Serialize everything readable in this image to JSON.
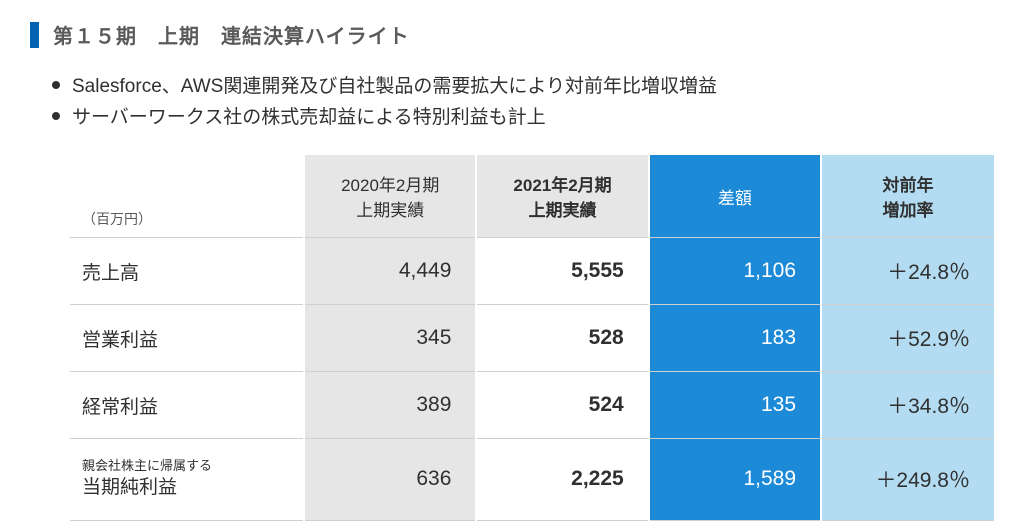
{
  "title": "第１５期　上期　連結決算ハイライト",
  "bullets": [
    "Salesforce、AWS関連開発及び自社製品の需要拡大により対前年比増収増益",
    "サーバーワークス社の株式売却益による特別利益も計上"
  ],
  "table": {
    "unit_label": "（百万円）",
    "headers": [
      {
        "text": "2020年2月期\n上期実績",
        "style": "gray",
        "bold": false
      },
      {
        "text": "2021年2月期\n上期実績",
        "style": "gray",
        "bold": true
      },
      {
        "text": "差額",
        "style": "blue",
        "bold": false
      },
      {
        "text": "対前年\n増加率",
        "style": "lightblue",
        "bold": true
      }
    ],
    "rows": [
      {
        "label": "売上高",
        "prev": "4,449",
        "curr": "5,555",
        "diff": "1,106",
        "rate": "＋24.8％"
      },
      {
        "label": "営業利益",
        "prev": "345",
        "curr": "528",
        "diff": "183",
        "rate": "＋52.9％"
      },
      {
        "label": "経常利益",
        "prev": "389",
        "curr": "524",
        "diff": "135",
        "rate": "＋34.8％"
      },
      {
        "label_small": "親会社株主に帰属する",
        "label": "当期純利益",
        "prev": "636",
        "curr": "2,225",
        "diff": "1,589",
        "rate": "＋249.8％"
      }
    ]
  },
  "colors": {
    "accent": "#0062b0",
    "header_gray": "#e6e6e6",
    "header_blue": "#1c8ad6",
    "header_lightblue": "#b3dcf2",
    "text_dark": "#303030",
    "text_muted": "#5a5a5a",
    "border": "#cfcfcf",
    "background": "#ffffff"
  }
}
